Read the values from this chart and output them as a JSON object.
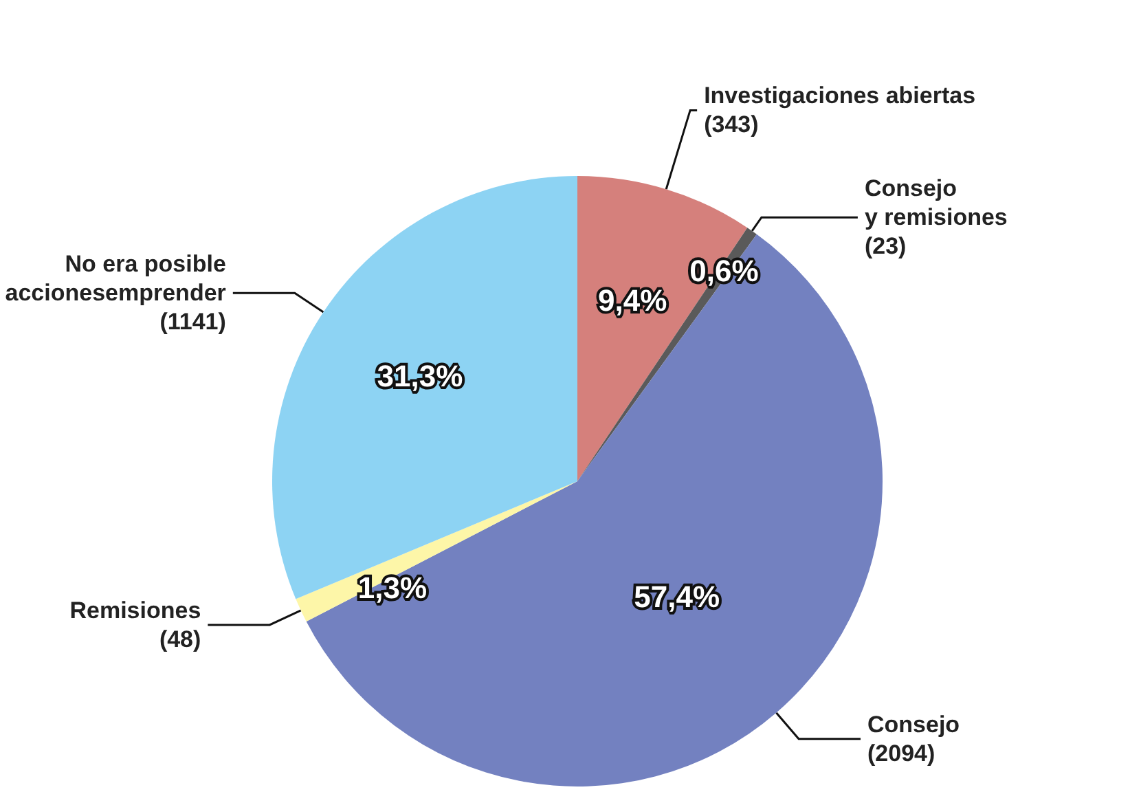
{
  "chart_data": {
    "type": "pie",
    "categories": [
      "Investigaciones abiertas\n(343)",
      "Consejo\ny remisiones\n(23)",
      "Consejo\n(2094)",
      "Remisiones\n(48)",
      "No era posible\naccionesemprender\n(1141)"
    ],
    "values": [
      9.4,
      0.6,
      57.4,
      1.3,
      31.3
    ],
    "colors": [
      "#d5807c",
      "#5a5a5a",
      "#7381c0",
      "#fdf6a8",
      "#8dd3f3"
    ],
    "value_labels": [
      "9,4%",
      "0,6%",
      "57,4%",
      "1,3%",
      "31,3%"
    ],
    "legend": false
  }
}
